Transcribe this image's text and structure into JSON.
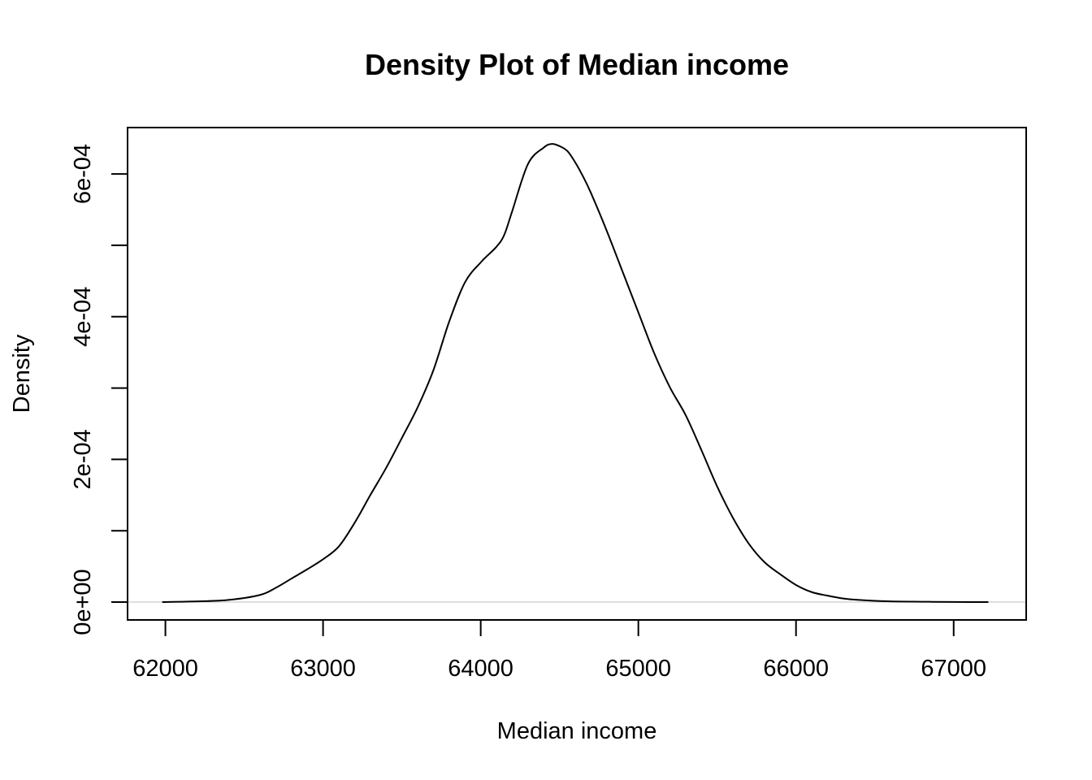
{
  "chart_data": {
    "type": "line",
    "title": "Density Plot of Median income",
    "xlabel": "Median income",
    "ylabel": "Density",
    "xlim": [
      61760,
      67460
    ],
    "ylim": [
      -2.5e-05,
      0.000665
    ],
    "x_ticks": [
      62000,
      63000,
      64000,
      65000,
      66000,
      67000
    ],
    "x_tick_labels": [
      "62000",
      "63000",
      "64000",
      "65000",
      "66000",
      "67000"
    ],
    "y_ticks": [
      0,
      0.0001,
      0.0002,
      0.0003,
      0.0004,
      0.0005,
      0.0006
    ],
    "y_tick_labels": [
      "0e+00",
      "",
      "2e-04",
      "",
      "4e-04",
      "",
      "6e-04"
    ],
    "grid": false,
    "zero_line": true,
    "series": [
      {
        "color": "#000000",
        "x": [
          61980,
          62200,
          62400,
          62600,
          62700,
          62800,
          62900,
          63000,
          63100,
          63200,
          63300,
          63400,
          63500,
          63600,
          63700,
          63800,
          63900,
          64000,
          64100,
          64150,
          64200,
          64300,
          64400,
          64450,
          64500,
          64550,
          64600,
          64650,
          64700,
          64800,
          64900,
          65000,
          65100,
          65200,
          65300,
          65400,
          65500,
          65600,
          65700,
          65800,
          65900,
          66000,
          66100,
          66200,
          66300,
          66400,
          66600,
          66800,
          67000,
          67220
        ],
        "y": [
          0.0,
          1e-06,
          3e-06,
          1e-05,
          2e-05,
          3.3e-05,
          4.6e-05,
          6e-05,
          7.8e-05,
          0.000111,
          0.00015,
          0.000188,
          0.00023,
          0.000273,
          0.000325,
          0.000393,
          0.000448,
          0.000476,
          0.000498,
          0.000515,
          0.000548,
          0.000614,
          0.000637,
          0.000642,
          0.000639,
          0.000632,
          0.000616,
          0.000596,
          0.000573,
          0.00052,
          0.000463,
          0.000406,
          0.000349,
          0.000301,
          0.000262,
          0.000213,
          0.000162,
          0.000118,
          8.2e-05,
          5.6e-05,
          3.9e-05,
          2.4e-05,
          1.4e-05,
          9e-06,
          5e-06,
          3e-06,
          1e-06,
          5e-07,
          2e-07,
          0.0
        ]
      }
    ]
  }
}
